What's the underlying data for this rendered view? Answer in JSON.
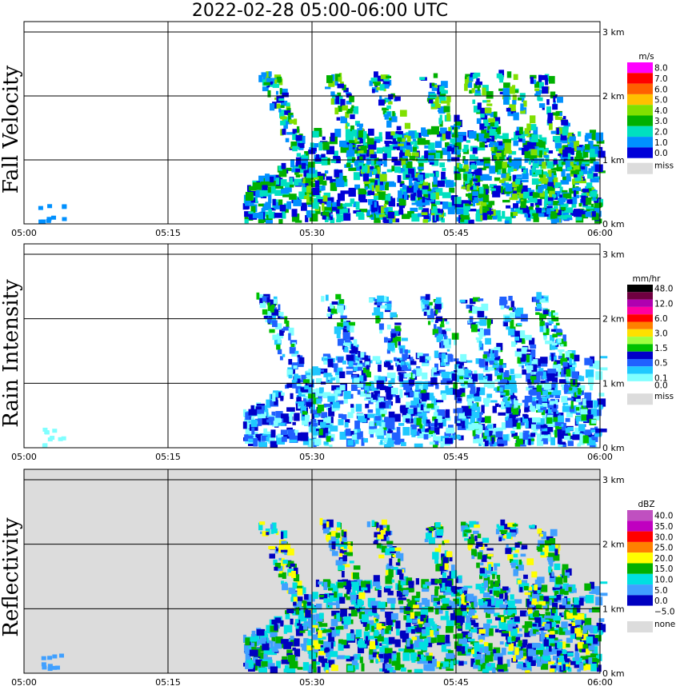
{
  "title": "2022-02-28  05:00-06:00 UTC",
  "chart_data": [
    {
      "type": "heatmap",
      "ylabel": "Fall Velocity",
      "x_ticks": [
        "05:00",
        "05:15",
        "05:30",
        "05:45",
        "06:00"
      ],
      "y_ticks": [
        "0 km",
        "1 km",
        "2 km",
        "3 km"
      ],
      "ylim_km": [
        0,
        3
      ],
      "xlim": [
        "05:00",
        "06:00"
      ],
      "grid": true,
      "legend": {
        "unit": "m/s",
        "placement": "right",
        "entries": [
          {
            "label": "8.0",
            "color": "#ff00ff"
          },
          {
            "label": "7.0",
            "color": "#ff0000"
          },
          {
            "label": "6.0",
            "color": "#ff6000"
          },
          {
            "label": "5.0",
            "color": "#ffc000"
          },
          {
            "label": "4.0",
            "color": "#80e000"
          },
          {
            "label": "3.0",
            "color": "#00b000"
          },
          {
            "label": "2.0",
            "color": "#00e0c0"
          },
          {
            "label": "1.0",
            "color": "#0090ff"
          },
          {
            "label": "0.0",
            "color": "#0000d8"
          },
          {
            "label": "miss",
            "color": "#dcdcdc"
          }
        ]
      },
      "background": "#ffffff",
      "echo_colors": [
        "#0090ff",
        "#00e0c0",
        "#00b000",
        "#0000d8",
        "#80e000"
      ]
    },
    {
      "type": "heatmap",
      "ylabel": "Rain Intensity",
      "x_ticks": [
        "05:00",
        "05:15",
        "05:30",
        "05:45",
        "06:00"
      ],
      "y_ticks": [
        "0 km",
        "1 km",
        "2 km",
        "3 km"
      ],
      "ylim_km": [
        0,
        3
      ],
      "xlim": [
        "05:00",
        "06:00"
      ],
      "grid": true,
      "legend": {
        "unit": "mm/hr",
        "placement": "right",
        "entries": [
          {
            "label": "48.0",
            "color": "#000000"
          },
          {
            "label": "",
            "color": "#700040"
          },
          {
            "label": "12.0",
            "color": "#b000b0"
          },
          {
            "label": "",
            "color": "#ff00a0"
          },
          {
            "label": "6.0",
            "color": "#ff0000"
          },
          {
            "label": "",
            "color": "#ff8000"
          },
          {
            "label": "3.0",
            "color": "#ffe000"
          },
          {
            "label": "",
            "color": "#a0ff40"
          },
          {
            "label": "1.5",
            "color": "#00c000"
          },
          {
            "label": "",
            "color": "#0000c8"
          },
          {
            "label": "0.5",
            "color": "#2060ff"
          },
          {
            "label": "",
            "color": "#20c8ff"
          },
          {
            "label": "0.1",
            "color": "#80ffff"
          },
          {
            "label": "0.0",
            "color": "#ffffff"
          },
          {
            "label": "miss",
            "color": "#dcdcdc"
          }
        ]
      },
      "background": "#ffffff",
      "echo_colors": [
        "#80ffff",
        "#20c8ff",
        "#2060ff",
        "#0000c8",
        "#00c000"
      ]
    },
    {
      "type": "heatmap",
      "ylabel": "Reflectivity",
      "x_ticks": [
        "05:00",
        "05:15",
        "05:30",
        "05:45",
        "06:00"
      ],
      "y_ticks": [
        "0 km",
        "1 km",
        "2 km",
        "3 km"
      ],
      "ylim_km": [
        0,
        3
      ],
      "xlim": [
        "05:00",
        "06:00"
      ],
      "grid": true,
      "legend": {
        "unit": "dBZ",
        "placement": "right",
        "entries": [
          {
            "label": "40.0",
            "color": "#c050c0"
          },
          {
            "label": "35.0",
            "color": "#c000c0"
          },
          {
            "label": "30.0",
            "color": "#ff0000"
          },
          {
            "label": "25.0",
            "color": "#ff8000"
          },
          {
            "label": "20.0",
            "color": "#ffff00"
          },
          {
            "label": "15.0",
            "color": "#00b000"
          },
          {
            "label": "10.0",
            "color": "#00e0e0"
          },
          {
            "label": "5.0",
            "color": "#40a0ff"
          },
          {
            "label": "0.0",
            "color": "#0000c0"
          },
          {
            "label": "−5.0",
            "color": "#ffffff"
          },
          {
            "label": "none",
            "color": "#dcdcdc"
          }
        ]
      },
      "background": "#dcdcdc",
      "echo_colors": [
        "#40a0ff",
        "#00e0e0",
        "#00b000",
        "#0000c0",
        "#ffff00"
      ]
    }
  ]
}
